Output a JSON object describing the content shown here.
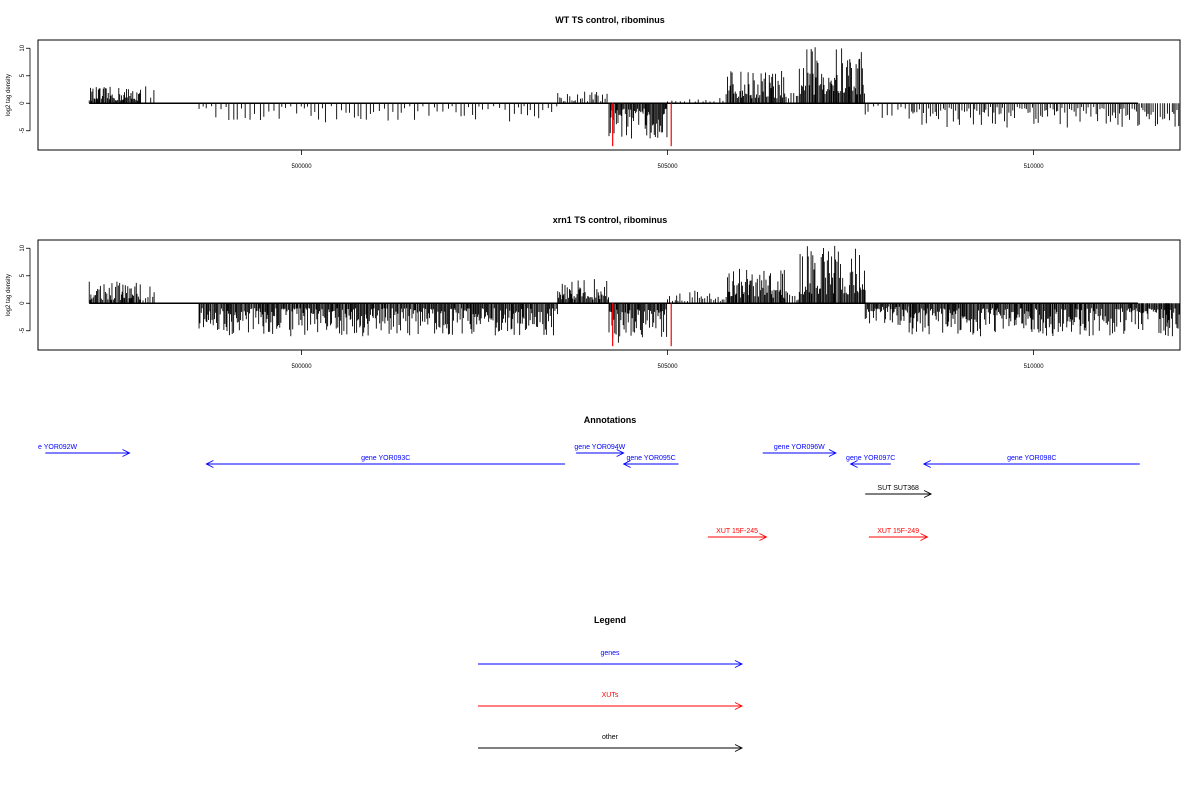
{
  "chart_data": [
    {
      "type": "bar",
      "title": "WT TS control, ribominus",
      "ylabel": "log2 tag density",
      "xlim": [
        496400,
        512000
      ],
      "ylim": [
        -8.5,
        11.5
      ],
      "yticks": [
        -5,
        0,
        5,
        10
      ],
      "xticks": [
        500000,
        505000,
        510000
      ],
      "grid": false,
      "profile_regions": [
        {
          "from": 497100,
          "to": 497800,
          "level": 3.0,
          "density": "dense"
        },
        {
          "from": 497800,
          "to": 498000,
          "level": 3.4,
          "density": "sparse"
        },
        {
          "from": 498600,
          "to": 503500,
          "level": -3.5,
          "density": "sparse"
        },
        {
          "from": 503500,
          "to": 504200,
          "level": 2.3,
          "density": "medium"
        },
        {
          "from": 504200,
          "to": 505000,
          "level": -6.5,
          "density": "dense"
        },
        {
          "from": 505000,
          "to": 505800,
          "level": 2.0,
          "density": "sparse"
        },
        {
          "from": 505800,
          "to": 506600,
          "level": 6.0,
          "density": "dense"
        },
        {
          "from": 506600,
          "to": 506800,
          "level": 2.0,
          "density": "medium"
        },
        {
          "from": 506800,
          "to": 507700,
          "level": 10.4,
          "density": "dense"
        },
        {
          "from": 507700,
          "to": 508300,
          "level": -3.0,
          "density": "sparse"
        },
        {
          "from": 508300,
          "to": 512000,
          "level": -4.5,
          "density": "medium"
        }
      ],
      "highlight_lines": [
        {
          "x": 504250,
          "y": -7.8
        },
        {
          "x": 505050,
          "y": -7.8
        }
      ]
    },
    {
      "type": "bar",
      "title": "xrn1 TS control, ribominus",
      "ylabel": "log2 tag density",
      "xlim": [
        496400,
        512000
      ],
      "ylim": [
        -8.5,
        11.5
      ],
      "yticks": [
        -5,
        0,
        5,
        10
      ],
      "xticks": [
        500000,
        505000,
        510000
      ],
      "grid": false,
      "profile_regions": [
        {
          "from": 497100,
          "to": 497800,
          "level": 4.0,
          "density": "dense"
        },
        {
          "from": 497800,
          "to": 498000,
          "level": 3.5,
          "density": "medium"
        },
        {
          "from": 498600,
          "to": 503500,
          "level": -6.0,
          "density": "dense"
        },
        {
          "from": 503500,
          "to": 504200,
          "level": 4.5,
          "density": "dense"
        },
        {
          "from": 504200,
          "to": 505000,
          "level": -7.5,
          "density": "dense"
        },
        {
          "from": 505000,
          "to": 505800,
          "level": 2.5,
          "density": "medium"
        },
        {
          "from": 505800,
          "to": 506600,
          "level": 6.5,
          "density": "dense"
        },
        {
          "from": 506600,
          "to": 506800,
          "level": 2.5,
          "density": "medium"
        },
        {
          "from": 506800,
          "to": 507700,
          "level": 10.5,
          "density": "dense"
        },
        {
          "from": 507700,
          "to": 508300,
          "level": -4.0,
          "density": "dense"
        },
        {
          "from": 508300,
          "to": 512000,
          "level": -6.0,
          "density": "dense"
        }
      ],
      "highlight_lines": [
        {
          "x": 504250,
          "y": -7.8
        },
        {
          "x": 505050,
          "y": -7.8
        }
      ]
    }
  ],
  "annotations": {
    "title": "Annotations",
    "features": [
      {
        "label": "e YOR092W",
        "kind": "gene",
        "strand": "+",
        "start": 496500,
        "end": 497650,
        "lane": 1
      },
      {
        "label": "gene YOR093C",
        "kind": "gene",
        "strand": "-",
        "start": 498700,
        "end": 503600,
        "lane": 2
      },
      {
        "label": "gene YOR094W",
        "kind": "gene",
        "strand": "+",
        "start": 503750,
        "end": 504400,
        "lane": 1
      },
      {
        "label": "gene YOR095C",
        "kind": "gene",
        "strand": "-",
        "start": 504400,
        "end": 505150,
        "lane": 2
      },
      {
        "label": "gene YOR096W",
        "kind": "gene",
        "strand": "+",
        "start": 506300,
        "end": 507300,
        "lane": 1
      },
      {
        "label": "gene YOR097C",
        "kind": "gene",
        "strand": "-",
        "start": 507500,
        "end": 508050,
        "lane": 2
      },
      {
        "label": "gene YOR098C",
        "kind": "gene",
        "strand": "-",
        "start": 508500,
        "end": 511450,
        "lane": 2
      },
      {
        "label": "SUT SUT368",
        "kind": "other",
        "strand": "+",
        "start": 507700,
        "end": 508600,
        "lane": 3
      },
      {
        "label": "XUT 15F-245",
        "kind": "xut",
        "strand": "+",
        "start": 505550,
        "end": 506350,
        "lane": 4
      },
      {
        "label": "XUT 15F-249",
        "kind": "xut",
        "strand": "+",
        "start": 507750,
        "end": 508550,
        "lane": 4
      }
    ]
  },
  "legend": {
    "title": "Legend",
    "items": [
      {
        "label": "genes",
        "kind": "gene"
      },
      {
        "label": "XUTs",
        "kind": "xut"
      },
      {
        "label": "other",
        "kind": "other"
      }
    ]
  },
  "colors": {
    "gene": "#0000ff",
    "xut": "#ff0000",
    "other": "#000000",
    "bar": "#000000",
    "highlight": "#ff0000"
  }
}
